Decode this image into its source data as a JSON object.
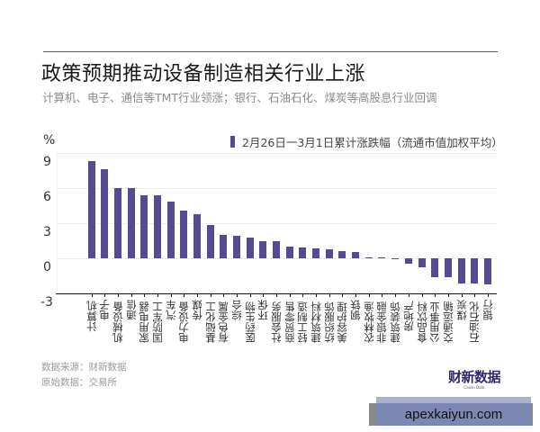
{
  "header": {
    "title": "政策预期推动设备制造相关行业上涨",
    "subtitle": "计算机、电子、通信等TMT行业领涨；银行、石油石化、煤炭等高股息行业回调"
  },
  "legend": {
    "label": "2月26日一3月1日累计涨跌幅（流通市值加权平均）",
    "color": "#574a93"
  },
  "yaxis": {
    "unit": "%",
    "ticks": [
      "9",
      "6",
      "3",
      "0",
      "-3"
    ]
  },
  "footer": {
    "source_line1": "数据来源：财新数据",
    "source_line2": "原始数据：交易所",
    "logo_main": "财新数据",
    "logo_sub": "Caixin Data",
    "watermark": "apexkaiyun.com"
  },
  "chart_data": {
    "type": "bar",
    "title": "政策预期推动设备制造相关行业上涨",
    "subtitle": "计算机、电子、通信等TMT行业领涨；银行、石油石化、煤炭等高股息行业回调",
    "xlabel": "",
    "ylabel": "%",
    "ylim": [
      -3,
      9
    ],
    "yticks": [
      -3,
      0,
      3,
      6,
      9
    ],
    "grid": true,
    "legend_position": "top-right",
    "categories": [
      "计算机",
      "电子",
      "机械设备",
      "通信",
      "家用电器",
      "国防军工",
      "汽车",
      "电力设备",
      "传媒",
      "基础化工",
      "有色金属",
      "综合",
      "医药生物",
      "环保",
      "社会服务",
      "商贸零售",
      "轻工制造",
      "建筑材料",
      "纺织服饰",
      "美容护理",
      "钢铁",
      "农林牧渔",
      "非银金融",
      "建筑装饰",
      "房地产",
      "食品饮料",
      "公用事业",
      "交通运输",
      "煤炭",
      "石油石化",
      "银行"
    ],
    "series": [
      {
        "name": "2月26日一3月1日累计涨跌幅（流通市值加权平均）",
        "color": "#574a93",
        "values": [
          8.3,
          7.6,
          6.0,
          6.0,
          5.4,
          5.4,
          4.85,
          4.1,
          3.8,
          2.85,
          2.0,
          1.9,
          1.75,
          1.5,
          1.5,
          1.0,
          0.9,
          0.85,
          0.75,
          0.65,
          0.55,
          0.1,
          0.05,
          -0.05,
          -0.45,
          -0.75,
          -1.6,
          -1.6,
          -2.15,
          -2.15,
          -2.2
        ]
      }
    ]
  }
}
